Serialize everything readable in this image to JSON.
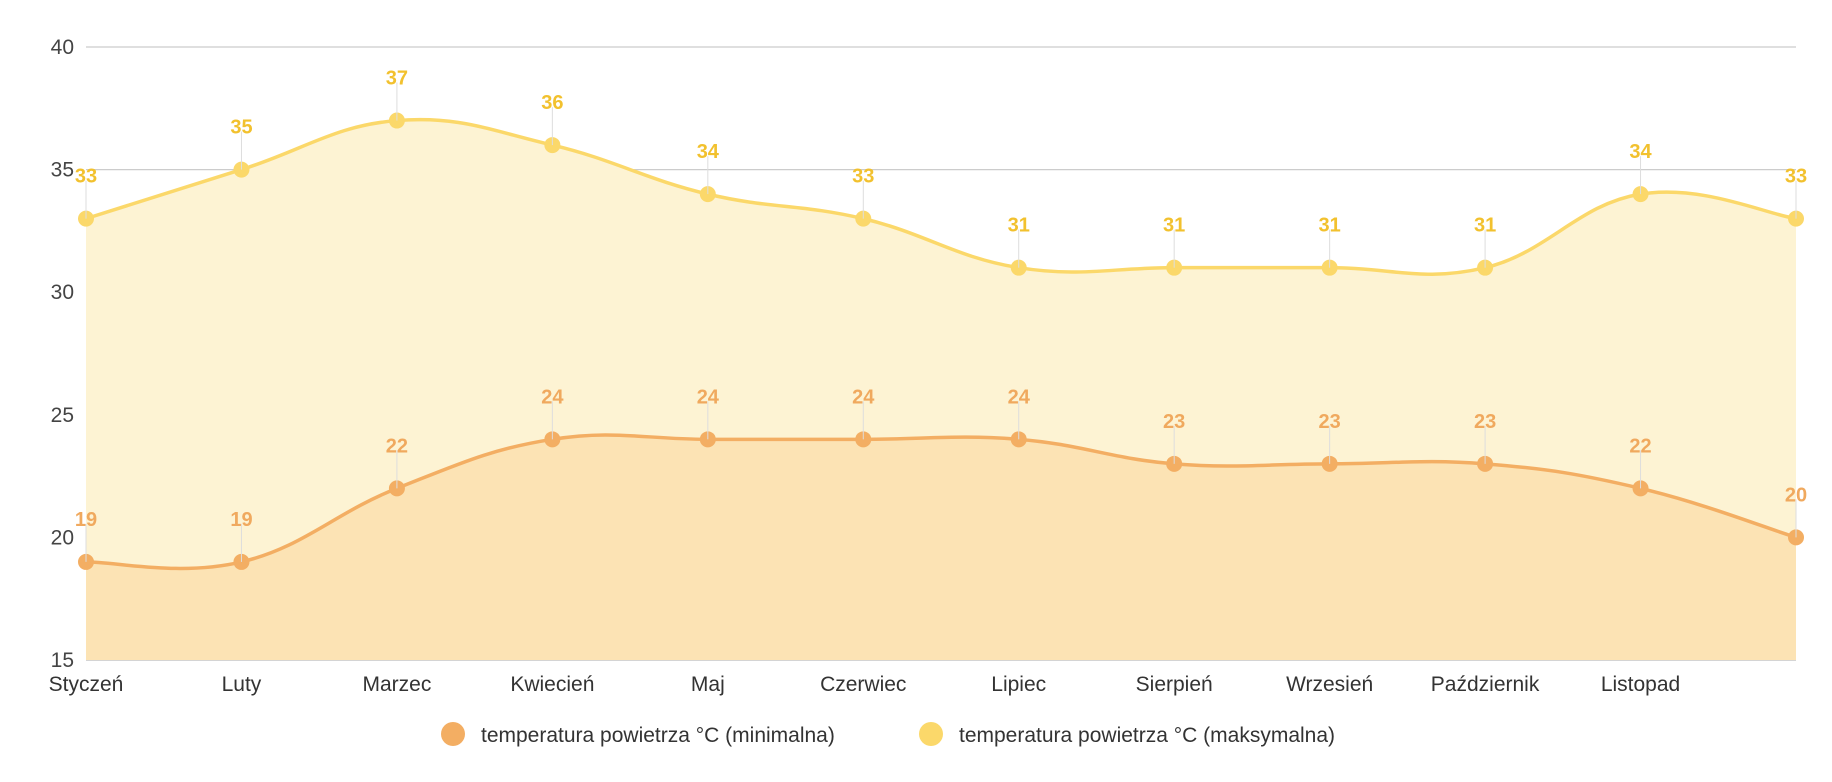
{
  "chart_data": {
    "type": "area",
    "title": "",
    "xlabel": "",
    "ylabel": "",
    "categories": [
      "Styczeń",
      "Luty",
      "Marzec",
      "Kwiecień",
      "Maj",
      "Czerwiec",
      "Lipiec",
      "Sierpień",
      "Wrzesień",
      "Październik",
      "Listopad",
      ""
    ],
    "ylim": [
      15,
      40
    ],
    "yticks": [
      15,
      20,
      25,
      30,
      35,
      40
    ],
    "grid": true,
    "legend_position": "bottom",
    "series": [
      {
        "name": "temperatura powietrza °C (minimalna)",
        "color": "#f3ae63",
        "fill": "#fce3b4",
        "label_color": "#f0a95e",
        "values": [
          19,
          19,
          22,
          24,
          24,
          24,
          24,
          23,
          23,
          23,
          22,
          20
        ]
      },
      {
        "name": "temperatura powietrza °C (maksymalna)",
        "color": "#fbd86a",
        "fill": "#fdf3d3",
        "label_color": "#f2c12e",
        "values": [
          33,
          35,
          37,
          36,
          34,
          33,
          31,
          31,
          31,
          31,
          34,
          33
        ]
      }
    ]
  }
}
